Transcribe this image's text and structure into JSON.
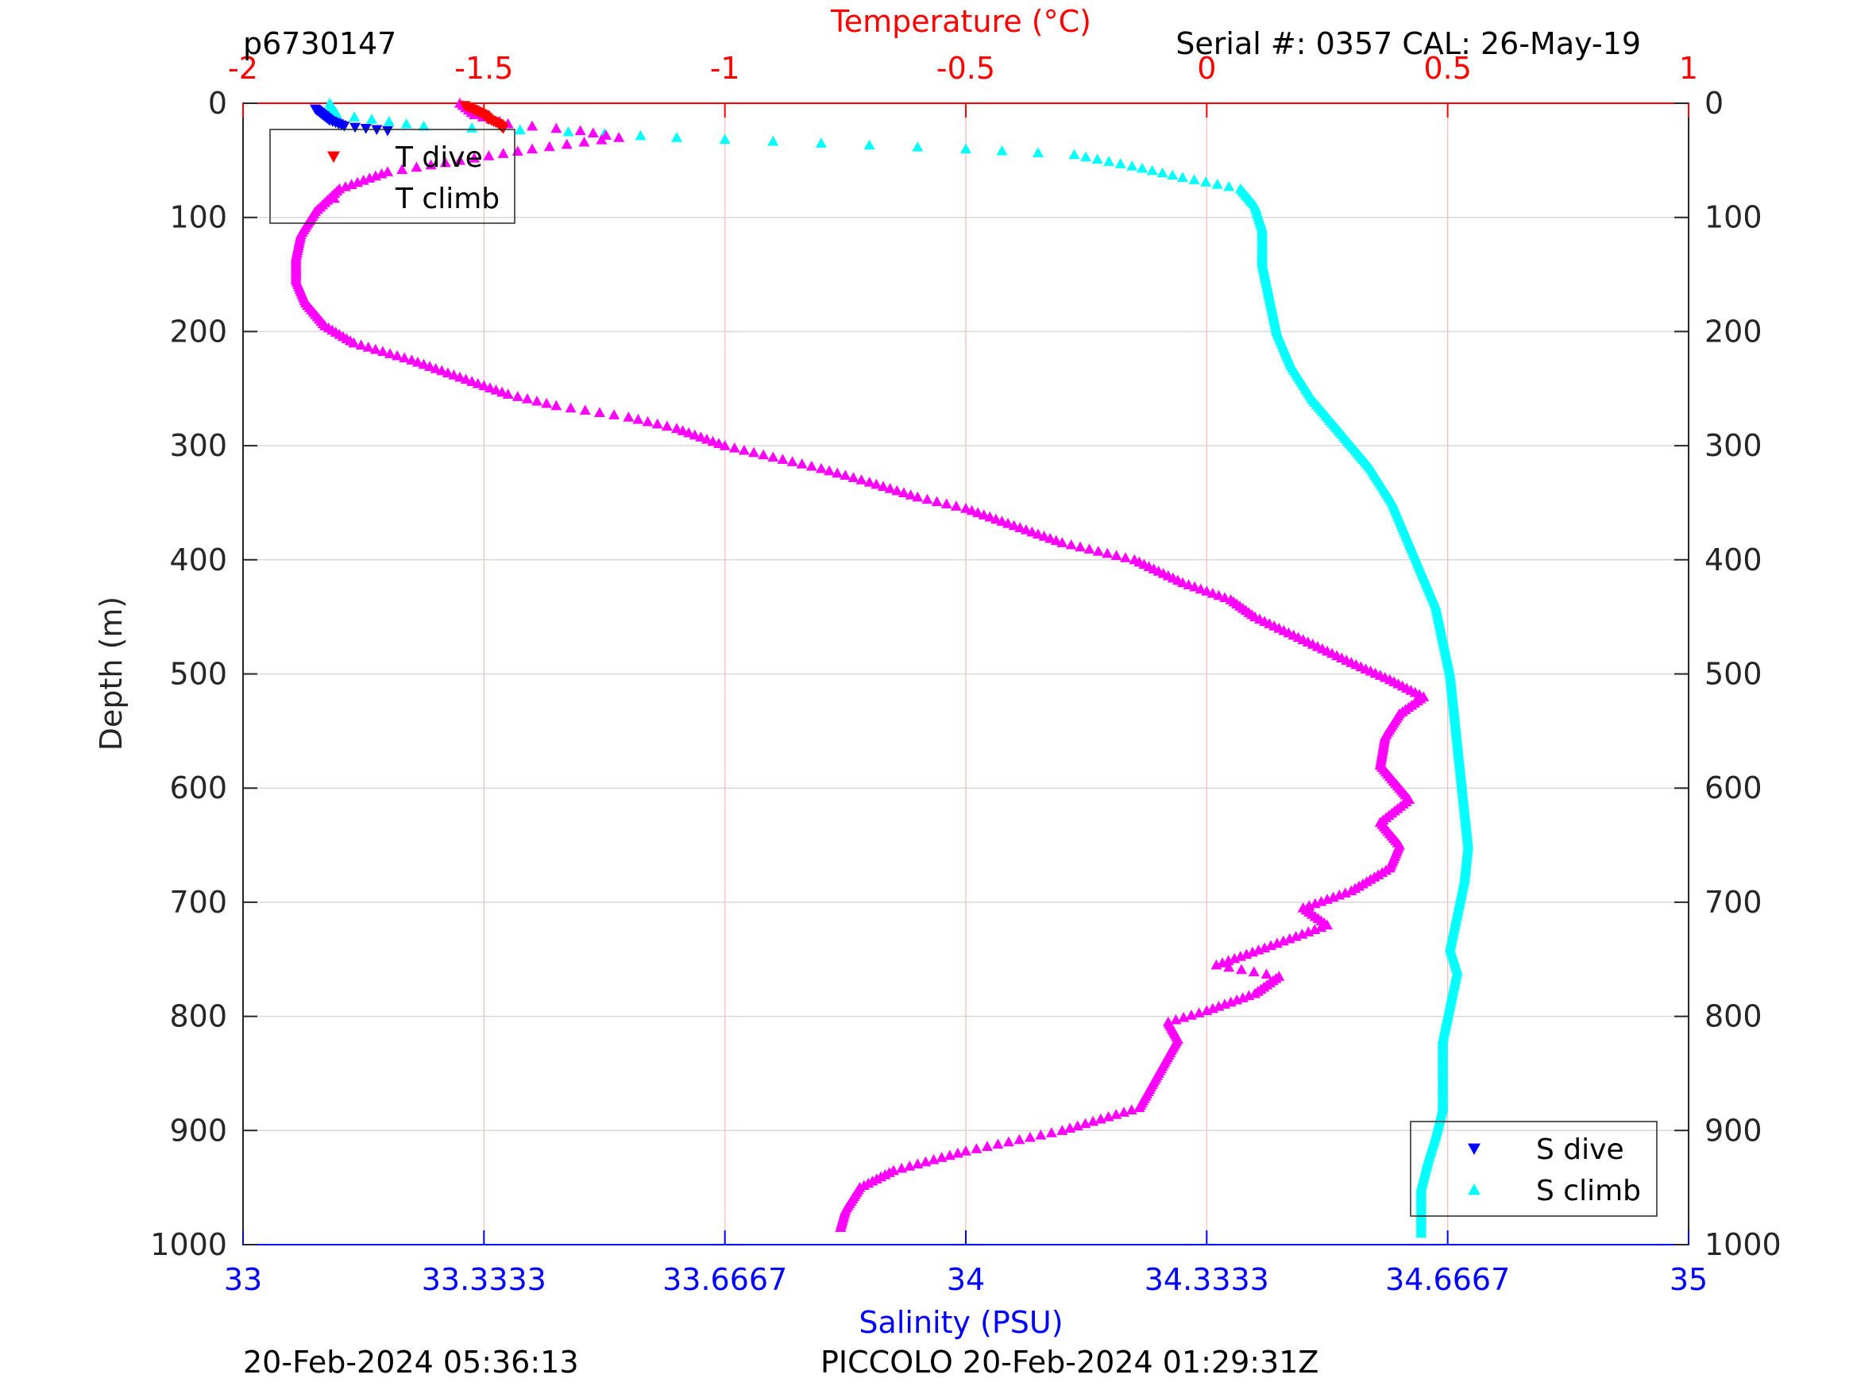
{
  "header": {
    "profile_id": "p6730147",
    "serial": "Serial #: 0357  CAL: 26-May-19"
  },
  "footer": {
    "left_timestamp": "20-Feb-2024 05:36:13",
    "right_mission": "PICCOLO 20-Feb-2024 01:29:31Z"
  },
  "colors": {
    "temperature_axis": "#ff0000",
    "salinity_axis": "#0000ff",
    "t_dive": "#ff0000",
    "t_climb": "#ff00ff",
    "s_dive": "#0000ff",
    "s_climb": "#00ffff",
    "grid_temperature": "#f2c6c6",
    "grid_depth": "#d9d9d9"
  },
  "chart_data": {
    "type": "scatter",
    "title": "",
    "y_axis": {
      "label": "Depth (m)",
      "range": [
        0,
        1000
      ],
      "inverted": true,
      "ticks": [
        0,
        100,
        200,
        300,
        400,
        500,
        600,
        700,
        800,
        900,
        1000
      ],
      "tick_labels": [
        "0",
        "100",
        "200",
        "300",
        "400",
        "500",
        "600",
        "700",
        "800",
        "900",
        "1000"
      ],
      "grid": true
    },
    "x_top": {
      "label": "Temperature (°C)",
      "range": [
        -2,
        1
      ],
      "ticks": [
        -2,
        -1.5,
        -1,
        -0.5,
        0,
        0.5,
        1
      ],
      "tick_labels": [
        "-2",
        "-1.5",
        "-1",
        "-0.5",
        "0",
        "0.5",
        "1"
      ],
      "grid": true
    },
    "x_bottom": {
      "label": "Salinity (PSU)",
      "range": [
        33,
        35
      ],
      "ticks": [
        33,
        33.3333,
        33.6667,
        34,
        34.3333,
        34.6667,
        35
      ],
      "tick_labels": [
        "33",
        "33.3333",
        "33.6667",
        "34",
        "34.3333",
        "34.6667",
        "35"
      ]
    },
    "legends": [
      {
        "position": "top-left",
        "entries": [
          {
            "label": "T dive",
            "marker": "triangle-down"
          },
          {
            "label": "T climb",
            "marker": "triangle-up"
          }
        ]
      },
      {
        "position": "bottom-right",
        "entries": [
          {
            "label": "S dive",
            "marker": "triangle-down"
          },
          {
            "label": "S climb",
            "marker": "triangle-up"
          }
        ]
      }
    ],
    "series": [
      {
        "name": "T dive",
        "axis": "temperature",
        "marker": "triangle-down",
        "points": [
          [
            -1.54,
            2
          ],
          [
            -1.52,
            6
          ],
          [
            -1.5,
            10
          ],
          [
            -1.49,
            14
          ],
          [
            -1.47,
            18
          ],
          [
            -1.46,
            22
          ]
        ]
      },
      {
        "name": "T climb",
        "axis": "temperature",
        "marker": "triangle-up",
        "points": [
          [
            -1.55,
            0
          ],
          [
            -1.52,
            10
          ],
          [
            -1.45,
            18
          ],
          [
            -1.3,
            24
          ],
          [
            -1.22,
            30
          ],
          [
            -1.4,
            40
          ],
          [
            -1.55,
            50
          ],
          [
            -1.7,
            60
          ],
          [
            -1.8,
            75
          ],
          [
            -1.85,
            95
          ],
          [
            -1.88,
            115
          ],
          [
            -1.89,
            135
          ],
          [
            -1.89,
            155
          ],
          [
            -1.87,
            175
          ],
          [
            -1.83,
            195
          ],
          [
            -1.77,
            210
          ],
          [
            -1.65,
            225
          ],
          [
            -1.55,
            240
          ],
          [
            -1.45,
            255
          ],
          [
            -1.35,
            265
          ],
          [
            -1.2,
            275
          ],
          [
            -1.1,
            285
          ],
          [
            -1.0,
            300
          ],
          [
            -0.9,
            310
          ],
          [
            -0.8,
            320
          ],
          [
            -0.7,
            332
          ],
          [
            -0.6,
            345
          ],
          [
            -0.5,
            355
          ],
          [
            -0.4,
            370
          ],
          [
            -0.3,
            385
          ],
          [
            -0.15,
            400
          ],
          [
            -0.05,
            420
          ],
          [
            0.05,
            435
          ],
          [
            0.1,
            450
          ],
          [
            0.2,
            470
          ],
          [
            0.3,
            490
          ],
          [
            0.38,
            505
          ],
          [
            0.45,
            520
          ],
          [
            0.4,
            535
          ],
          [
            0.37,
            555
          ],
          [
            0.36,
            580
          ],
          [
            0.42,
            610
          ],
          [
            0.36,
            630
          ],
          [
            0.4,
            650
          ],
          [
            0.38,
            670
          ],
          [
            0.3,
            690
          ],
          [
            0.2,
            705
          ],
          [
            0.25,
            720
          ],
          [
            0.12,
            740
          ],
          [
            0.02,
            755
          ],
          [
            0.15,
            765
          ],
          [
            0.1,
            780
          ],
          [
            0.0,
            795
          ],
          [
            -0.08,
            805
          ],
          [
            -0.06,
            820
          ],
          [
            -0.1,
            850
          ],
          [
            -0.14,
            880
          ],
          [
            -0.3,
            900
          ],
          [
            -0.5,
            918
          ],
          [
            -0.65,
            935
          ],
          [
            -0.72,
            950
          ],
          [
            -0.75,
            970
          ],
          [
            -0.76,
            985
          ]
        ]
      },
      {
        "name": "S dive",
        "axis": "salinity",
        "marker": "triangle-down",
        "points": [
          [
            33.1,
            5
          ],
          [
            33.11,
            10
          ],
          [
            33.12,
            15
          ],
          [
            33.14,
            20
          ],
          [
            33.2,
            24
          ]
        ]
      },
      {
        "name": "S climb",
        "axis": "salinity",
        "marker": "triangle-up",
        "points": [
          [
            33.12,
            0
          ],
          [
            33.13,
            10
          ],
          [
            33.25,
            20
          ],
          [
            33.45,
            25
          ],
          [
            33.6,
            30
          ],
          [
            33.8,
            35
          ],
          [
            34.0,
            40
          ],
          [
            34.15,
            45
          ],
          [
            34.23,
            55
          ],
          [
            34.3,
            65
          ],
          [
            34.38,
            75
          ],
          [
            34.4,
            90
          ],
          [
            34.41,
            110
          ],
          [
            34.41,
            140
          ],
          [
            34.42,
            170
          ],
          [
            34.43,
            200
          ],
          [
            34.45,
            230
          ],
          [
            34.48,
            260
          ],
          [
            34.52,
            290
          ],
          [
            34.56,
            320
          ],
          [
            34.59,
            350
          ],
          [
            34.61,
            380
          ],
          [
            34.63,
            410
          ],
          [
            34.65,
            440
          ],
          [
            34.66,
            470
          ],
          [
            34.67,
            500
          ],
          [
            34.675,
            530
          ],
          [
            34.68,
            560
          ],
          [
            34.685,
            590
          ],
          [
            34.69,
            620
          ],
          [
            34.695,
            650
          ],
          [
            34.69,
            680
          ],
          [
            34.68,
            710
          ],
          [
            34.67,
            740
          ],
          [
            34.68,
            760
          ],
          [
            34.67,
            790
          ],
          [
            34.66,
            820
          ],
          [
            34.66,
            850
          ],
          [
            34.66,
            880
          ],
          [
            34.65,
            905
          ],
          [
            34.64,
            925
          ],
          [
            34.63,
            950
          ],
          [
            34.63,
            970
          ],
          [
            34.63,
            990
          ]
        ]
      }
    ]
  }
}
